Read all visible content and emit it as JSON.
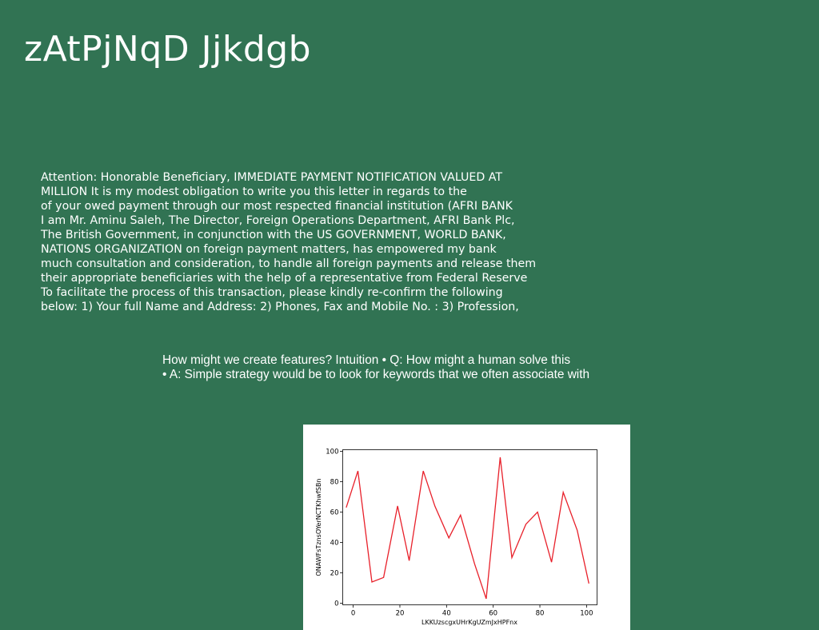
{
  "slide": {
    "title": "zAtPjNqD Jjkdgb",
    "background": "#317353",
    "letter_lines": [
      "Attention: Honorable Beneficiary, IMMEDIATE PAYMENT NOTIFICATION VALUED AT",
      "MILLION It is my modest obligation to write you this letter in regards to the",
      "of your owed payment through our most respected financial institution (AFRI BANK",
      "I am Mr. Aminu Saleh, The Director, Foreign Operations Department, AFRI Bank Plc,",
      "The British Government, in conjunction with the US GOVERNMENT, WORLD BANK,",
      "NATIONS ORGANIZATION on foreign payment matters, has empowered my bank",
      "much consultation and consideration, to handle all foreign payments and release them",
      "their appropriate beneficiaries with the help of a representative from Federal Reserve",
      "To facilitate the process of this transaction, please kindly re-confirm the following",
      "below: 1) Your full Name and Address: 2) Phones, Fax and Mobile No. : 3) Profession,"
    ],
    "feature_lines": [
      "How might we create features? Intuition • Q: How might a human solve this",
      "• A: Simple strategy would be to look for keywords that we often associate with"
    ]
  },
  "chart_data": {
    "type": "line",
    "xlabel": "LKKUzscgxUHrKgUZmJxHPFnx",
    "ylabel": "ONAWFsTznsOYerNCTKhwfSBn",
    "xlim": [
      -4.5,
      104.5
    ],
    "ylim": [
      -1,
      101
    ],
    "xticks": [
      0,
      20,
      40,
      60,
      80,
      100
    ],
    "yticks": [
      0,
      20,
      40,
      60,
      80,
      100
    ],
    "grid": false,
    "line_color": "#e8202a",
    "series": [
      {
        "x": [
          -3,
          2,
          8,
          13,
          19,
          24,
          30,
          35,
          41,
          46,
          52,
          57,
          63,
          68,
          74,
          79,
          85,
          90,
          96,
          101
        ],
        "y": [
          63,
          87,
          14,
          17,
          64,
          28,
          87,
          64,
          43,
          58,
          26,
          3,
          96,
          30,
          52,
          60,
          27,
          73,
          48,
          13
        ]
      }
    ]
  }
}
